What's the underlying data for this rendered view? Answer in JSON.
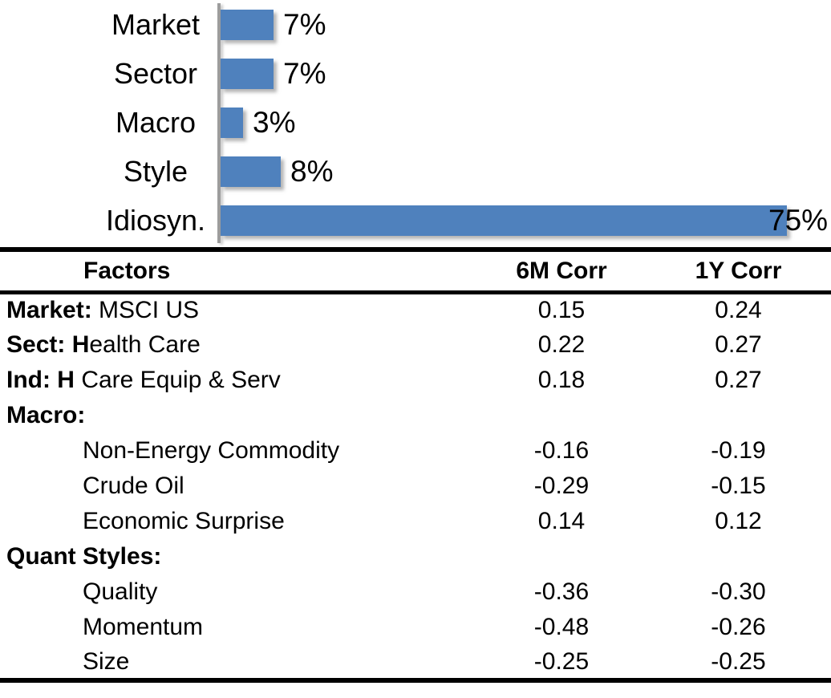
{
  "colors": {
    "bar_fill": "#4f81bd",
    "axis_line": "#9d9d9d",
    "text": "#000000",
    "rule_lines": "#000000"
  },
  "chart_data": {
    "type": "bar",
    "orientation": "horizontal",
    "title": "",
    "xlabel": "",
    "ylabel": "",
    "xlim": [
      0,
      80
    ],
    "grid": false,
    "legend": false,
    "categories": [
      "Market",
      "Sector",
      "Macro",
      "Style",
      "Idiosyn."
    ],
    "values": [
      7,
      7,
      3,
      8,
      75
    ],
    "value_labels": [
      "7%",
      "7%",
      "3%",
      "8%",
      "75%"
    ],
    "unit": "%"
  },
  "table": {
    "headers": {
      "factors": "Factors",
      "corr_6m": "6M Corr",
      "corr_1y": "1Y Corr"
    },
    "rows": [
      {
        "label_bold": "Market:",
        "label_rest": " MSCI US",
        "indent": false,
        "corr_6m": "0.15",
        "corr_1y": "0.24"
      },
      {
        "label_bold": "Sect: H",
        "label_rest": "ealth Care",
        "indent": false,
        "corr_6m": "0.22",
        "corr_1y": "0.27"
      },
      {
        "label_bold": "Ind: H",
        "label_rest": " Care Equip & Serv",
        "indent": false,
        "corr_6m": "0.18",
        "corr_1y": "0.27"
      },
      {
        "label_bold": "Macro:",
        "label_rest": "",
        "indent": false,
        "corr_6m": "",
        "corr_1y": ""
      },
      {
        "label_bold": "",
        "label_rest": "Non-Energy Commodity",
        "indent": true,
        "corr_6m": "-0.16",
        "corr_1y": "-0.19"
      },
      {
        "label_bold": "",
        "label_rest": "Crude Oil",
        "indent": true,
        "corr_6m": "-0.29",
        "corr_1y": "-0.15"
      },
      {
        "label_bold": "",
        "label_rest": "Economic Surprise",
        "indent": true,
        "corr_6m": "0.14",
        "corr_1y": "0.12"
      },
      {
        "label_bold": "Quant Styles:",
        "label_rest": "",
        "indent": false,
        "corr_6m": "",
        "corr_1y": ""
      },
      {
        "label_bold": "",
        "label_rest": "Quality",
        "indent": true,
        "corr_6m": "-0.36",
        "corr_1y": "-0.30"
      },
      {
        "label_bold": "",
        "label_rest": "Momentum",
        "indent": true,
        "corr_6m": "-0.48",
        "corr_1y": "-0.26"
      },
      {
        "label_bold": "",
        "label_rest": "Size",
        "indent": true,
        "corr_6m": "-0.25",
        "corr_1y": "-0.25"
      }
    ]
  }
}
